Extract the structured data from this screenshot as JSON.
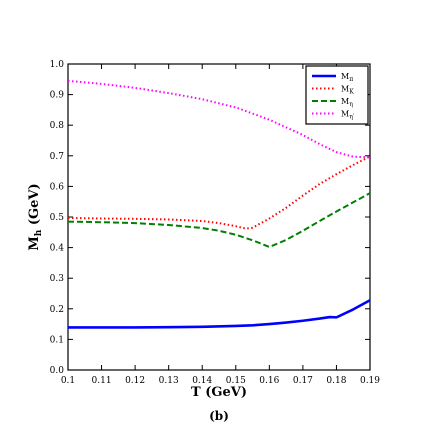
{
  "chart_data": {
    "type": "line",
    "xlabel": "T (GeV)",
    "ylabel": "M_h (GeV)",
    "ylabel_main": "M",
    "ylabel_sub": "h",
    "ylabel_rest": " (GeV)",
    "panel_label": "(b)",
    "xlim": [
      0.1,
      0.19
    ],
    "ylim": [
      0.0,
      1.0
    ],
    "x_ticks": [
      0.1,
      0.11,
      0.12,
      0.13,
      0.14,
      0.15,
      0.16,
      0.17,
      0.18,
      0.19
    ],
    "x_tick_labels": [
      "0.1",
      "0.11",
      "0.12",
      "0.13",
      "0.14",
      "0.15",
      "0.16",
      "0.17",
      "0.18",
      "0.19"
    ],
    "y_ticks": [
      0.0,
      0.1,
      0.2,
      0.3,
      0.4,
      0.5,
      0.6,
      0.7,
      0.8,
      0.9,
      1.0
    ],
    "y_tick_labels": [
      "0.0",
      "0.1",
      "0.2",
      "0.3",
      "0.4",
      "0.5",
      "0.6",
      "0.7",
      "0.8",
      "0.9",
      "1.0"
    ],
    "grid": false,
    "legend_position": "top-right",
    "series": [
      {
        "name": "M_π",
        "main": "M",
        "sub": "π",
        "color": "#0000ff",
        "style": "solid",
        "x": [
          0.1,
          0.11,
          0.12,
          0.13,
          0.14,
          0.15,
          0.155,
          0.16,
          0.165,
          0.17,
          0.175,
          0.178,
          0.18,
          0.185,
          0.19
        ],
        "y": [
          0.139,
          0.139,
          0.139,
          0.14,
          0.141,
          0.144,
          0.146,
          0.15,
          0.155,
          0.161,
          0.168,
          0.173,
          0.172,
          0.198,
          0.228
        ]
      },
      {
        "name": "M_K",
        "main": "M",
        "sub": "K",
        "color": "#ff0000",
        "style": "dotted",
        "x": [
          0.1,
          0.11,
          0.12,
          0.13,
          0.14,
          0.145,
          0.15,
          0.153,
          0.155,
          0.16,
          0.165,
          0.17,
          0.175,
          0.18,
          0.185,
          0.19
        ],
        "y": [
          0.497,
          0.495,
          0.494,
          0.492,
          0.487,
          0.48,
          0.47,
          0.462,
          0.465,
          0.495,
          0.53,
          0.57,
          0.608,
          0.64,
          0.67,
          0.698
        ]
      },
      {
        "name": "M_η",
        "main": "M",
        "sub": "η",
        "color": "#008000",
        "style": "dashed",
        "x": [
          0.1,
          0.11,
          0.12,
          0.13,
          0.14,
          0.145,
          0.15,
          0.155,
          0.16,
          0.165,
          0.17,
          0.175,
          0.18,
          0.185,
          0.19
        ],
        "y": [
          0.485,
          0.483,
          0.48,
          0.474,
          0.464,
          0.455,
          0.442,
          0.424,
          0.402,
          0.425,
          0.455,
          0.487,
          0.518,
          0.548,
          0.578
        ]
      },
      {
        "name": "M_η′",
        "main": "M",
        "sub": "η′",
        "color": "#ff00ff",
        "style": "dotted",
        "x": [
          0.1,
          0.11,
          0.12,
          0.13,
          0.14,
          0.15,
          0.16,
          0.17,
          0.175,
          0.18,
          0.185,
          0.19
        ],
        "y": [
          0.945,
          0.935,
          0.922,
          0.905,
          0.885,
          0.858,
          0.818,
          0.768,
          0.738,
          0.712,
          0.697,
          0.695
        ]
      }
    ]
  }
}
